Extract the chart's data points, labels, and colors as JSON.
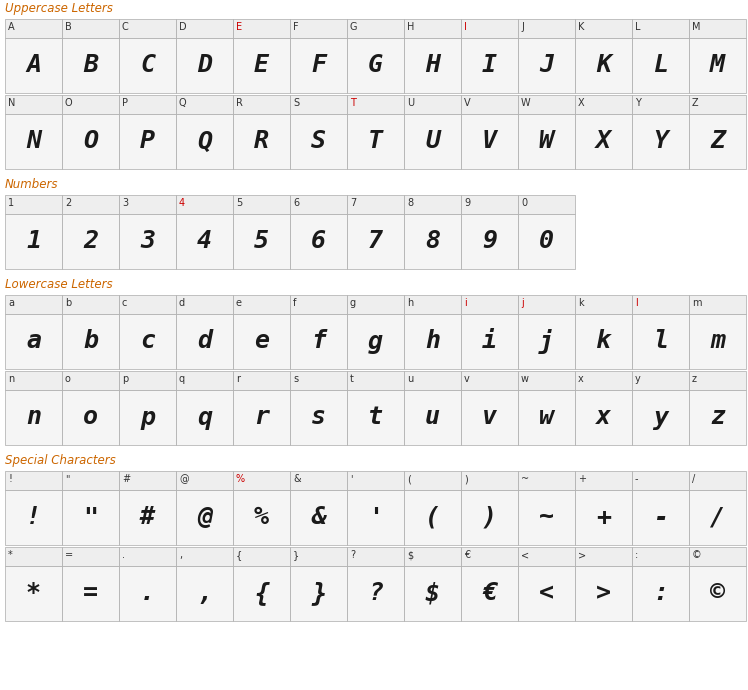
{
  "sections": [
    {
      "label": "Uppercase Letters",
      "label_color": "#cc6600",
      "rows": [
        {
          "chars": [
            "A",
            "B",
            "C",
            "D",
            "E",
            "F",
            "G",
            "H",
            "I",
            "J",
            "K",
            "L",
            "M"
          ]
        },
        {
          "chars": [
            "N",
            "O",
            "P",
            "Q",
            "R",
            "S",
            "T",
            "U",
            "V",
            "W",
            "X",
            "Y",
            "Z"
          ]
        }
      ]
    },
    {
      "label": "Numbers",
      "label_color": "#cc6600",
      "rows": [
        {
          "chars": [
            "1",
            "2",
            "3",
            "4",
            "5",
            "6",
            "7",
            "8",
            "9",
            "0"
          ]
        }
      ]
    },
    {
      "label": "Lowercase Letters",
      "label_color": "#cc6600",
      "rows": [
        {
          "chars": [
            "a",
            "b",
            "c",
            "d",
            "e",
            "f",
            "g",
            "h",
            "i",
            "j",
            "k",
            "l",
            "m"
          ]
        },
        {
          "chars": [
            "n",
            "o",
            "p",
            "q",
            "r",
            "s",
            "t",
            "u",
            "v",
            "w",
            "x",
            "y",
            "z"
          ]
        }
      ]
    },
    {
      "label": "Special Characters",
      "label_color": "#cc6600",
      "rows": [
        {
          "chars": [
            "!",
            "\"",
            "#",
            "@",
            "%",
            "&",
            "'",
            "(",
            ")",
            "~",
            "+",
            "-",
            "/"
          ]
        },
        {
          "chars": [
            "*",
            "=",
            ".",
            ",",
            "{",
            "}",
            "?",
            "$",
            "€",
            "<",
            ">",
            ":",
            "©"
          ]
        }
      ]
    }
  ],
  "special_colored": {
    "E": "#cc0000",
    "I": "#cc0000",
    "T": "#cc0000",
    "i": "#cc0000",
    "j": "#cc0000",
    "l": "#cc0000",
    "4": "#cc0000",
    "%": "#cc0000"
  },
  "bg": "#ffffff",
  "cell_bg": "#f0f0f0",
  "cell_border": "#aaaaaa",
  "glyph_color": "#1a1a1a",
  "label_text_color": "#333333",
  "section_label_size": 8.5,
  "char_label_size": 7.0,
  "glyph_size": 18
}
